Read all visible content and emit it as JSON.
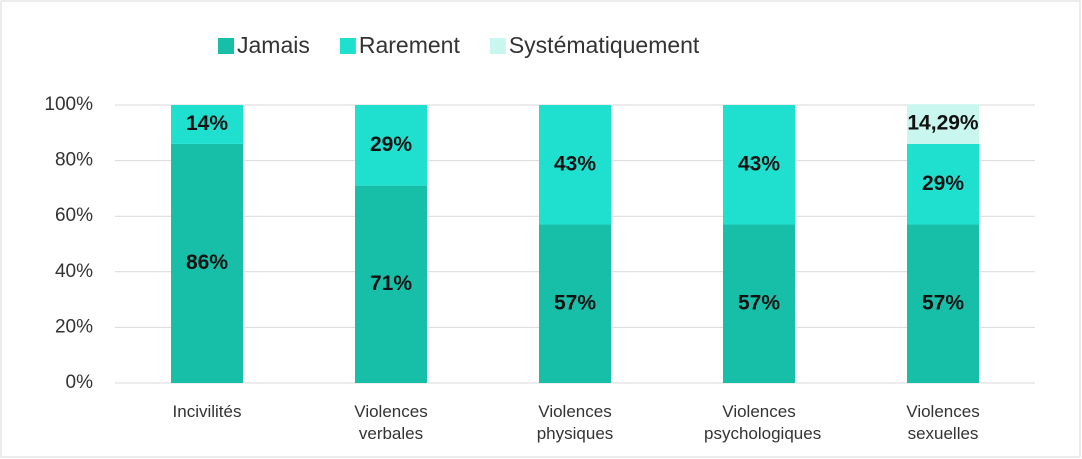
{
  "chart_data": {
    "type": "stacked-bar",
    "categories": [
      "Incivilités",
      "Violences verbales",
      "Violences physiques",
      "Violences psychologiques",
      "Violences sexuelles"
    ],
    "series": [
      {
        "name": "Jamais",
        "color": "#17bfa8",
        "values": [
          86,
          71,
          57,
          57,
          57
        ],
        "value_labels": [
          "86%",
          "71%",
          "57%",
          "57%",
          "57%"
        ]
      },
      {
        "name": "Rarement",
        "color": "#1fe0cf",
        "values": [
          14,
          29,
          43,
          43,
          29
        ],
        "value_labels": [
          "14%",
          "29%",
          "43%",
          "43%",
          "29%"
        ]
      },
      {
        "name": "Systématiquement",
        "color": "#c9f7ef",
        "values": [
          null,
          null,
          null,
          null,
          14.29
        ],
        "value_labels": [
          null,
          null,
          null,
          null,
          "14,29%"
        ]
      }
    ],
    "ylim": [
      0,
      100
    ],
    "yticks": [
      {
        "value": 0,
        "label": "0%"
      },
      {
        "value": 20,
        "label": "20%"
      },
      {
        "value": 40,
        "label": "40%"
      },
      {
        "value": 60,
        "label": "60%"
      },
      {
        "value": 80,
        "label": "80%"
      },
      {
        "value": 100,
        "label": "100%"
      }
    ],
    "grid": true,
    "legend": "top"
  }
}
